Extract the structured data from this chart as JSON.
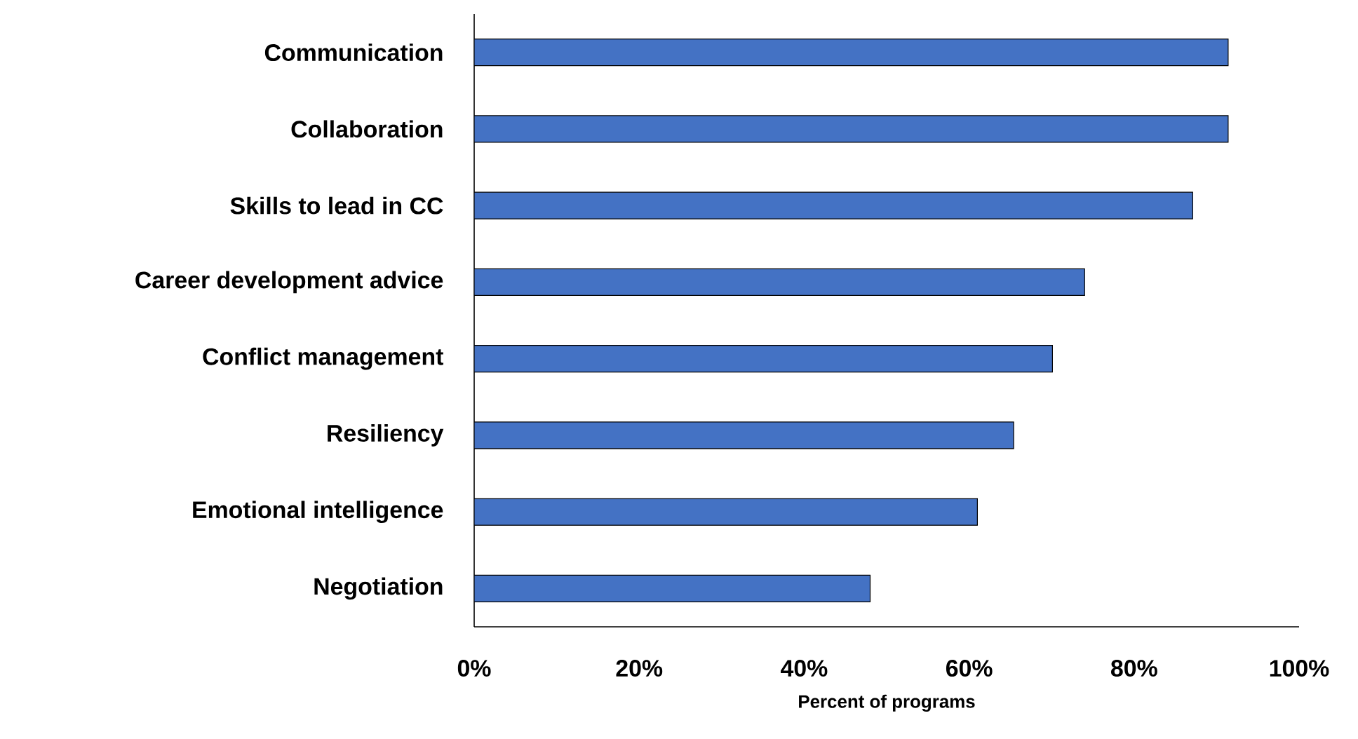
{
  "chart_data": {
    "type": "bar",
    "orientation": "horizontal",
    "xlabel": "Percent of programs",
    "categories": [
      "Communication",
      "Collaboration",
      "Skills to lead in CC",
      "Career development advice",
      "Conflict management",
      "Resiliency",
      "Emotional intelligence",
      "Negotiation"
    ],
    "values": [
      91.4,
      91.4,
      87.1,
      74,
      70.1,
      65.4,
      61,
      48
    ],
    "color": "#4472c4",
    "xlim": [
      0,
      100
    ],
    "xticks": [
      {
        "value": 0,
        "label": "0%"
      },
      {
        "value": 20,
        "label": "20%"
      },
      {
        "value": 40,
        "label": "40%"
      },
      {
        "value": 60,
        "label": "60%"
      },
      {
        "value": 80,
        "label": "80%"
      },
      {
        "value": 100,
        "label": "100%"
      }
    ],
    "grid": false
  }
}
